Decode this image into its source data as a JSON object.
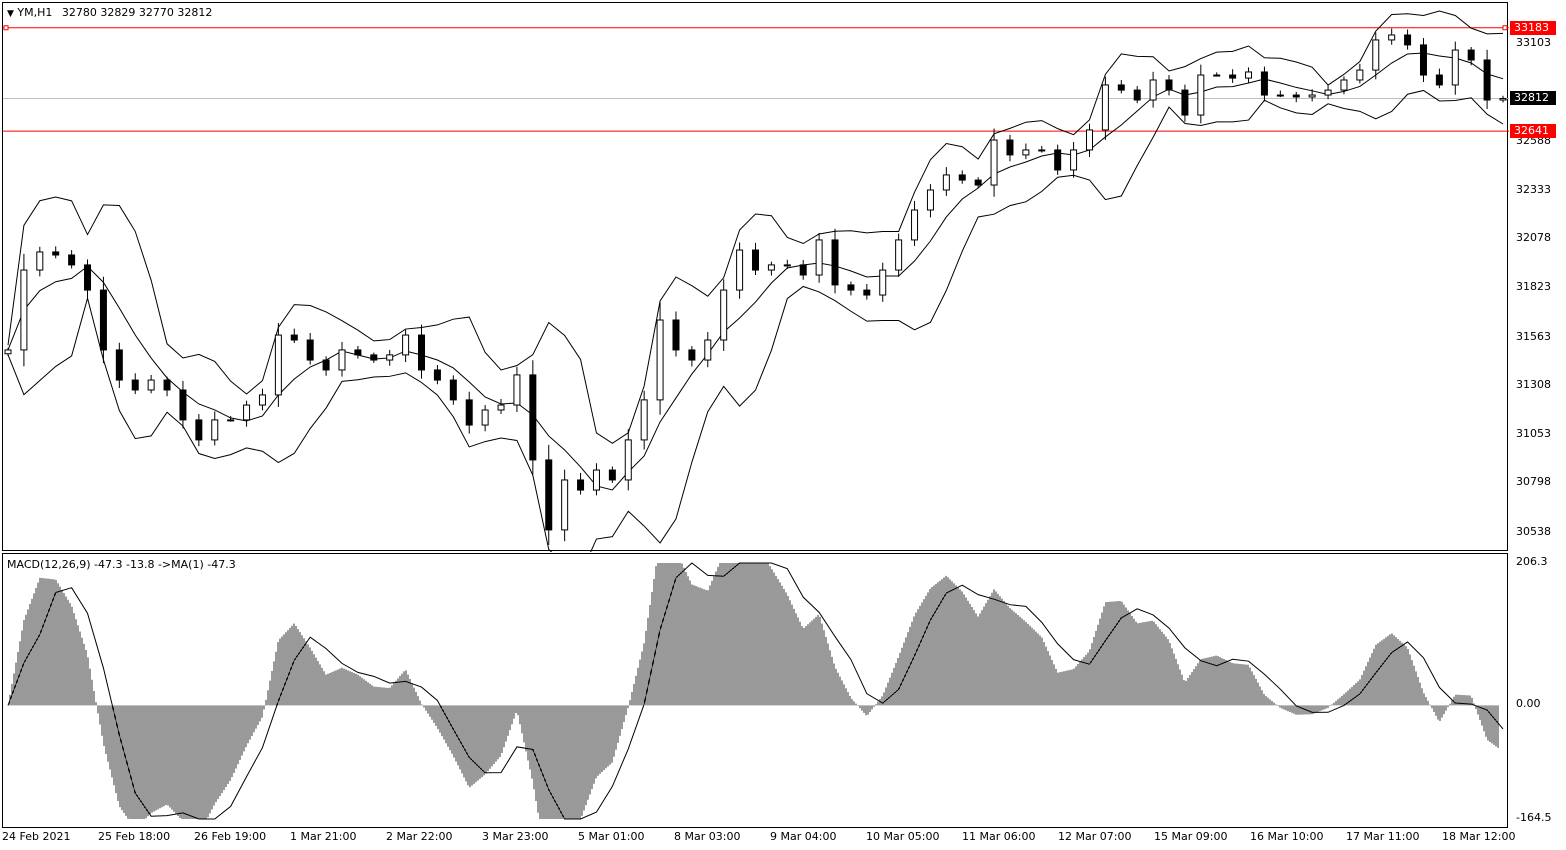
{
  "header": {
    "symbol_label": "YM,H1",
    "ohlc": "32780 32829 32770 32812",
    "menu_icon": "triangle-down-icon"
  },
  "macd_header": "MACD(12,26,9) -47.3 -13.8  ->MA(1) -47.3",
  "colors": {
    "level_line": "#ff0000",
    "current_tag": "#000000",
    "bull_body": "#ffffff",
    "bear_body": "#000000",
    "grid_line": "#c0c0c0"
  },
  "chart_data": [
    {
      "type": "candlestick",
      "symbol": "YM",
      "timeframe": "H1",
      "indicators": [
        "Bollinger Bands",
        "MACD"
      ],
      "y_ticks": [
        33103,
        32588,
        32333,
        32078,
        31823,
        31563,
        31308,
        31053,
        30798,
        30538
      ],
      "ylim": [
        30480,
        33385
      ],
      "levels": [
        {
          "value": 33183,
          "label": "33183"
        },
        {
          "value": 32641,
          "label": "32641"
        }
      ],
      "current_price": {
        "value": 32812,
        "label": "32812"
      },
      "x_ticks": [
        "24 Feb 2021",
        "25 Feb 18:00",
        "26 Feb 19:00",
        "1 Mar 21:00",
        "2 Mar 22:00",
        "3 Mar 23:00",
        "5 Mar 01:00",
        "8 Mar 03:00",
        "9 Mar 04:00",
        "10 Mar 05:00",
        "11 Mar 06:00",
        "12 Mar 07:00",
        "15 Mar 09:00",
        "16 Mar 10:00",
        "17 Mar 11:00",
        "18 Mar 12:00"
      ],
      "closes": [
        31493,
        31912,
        32007,
        31991,
        31939,
        31807,
        31493,
        31335,
        31283,
        31335,
        31283,
        31126,
        31021,
        31126,
        31126,
        31204,
        31257,
        31571,
        31545,
        31440,
        31388,
        31493,
        31467,
        31440,
        31467,
        31571,
        31388,
        31335,
        31231,
        31099,
        31178,
        31204,
        31362,
        30916,
        30549,
        30811,
        30758,
        30863,
        30811,
        31021,
        31231,
        31650,
        31493,
        31440,
        31545,
        31807,
        32017,
        31912,
        31939,
        31939,
        31886,
        32070,
        31834,
        31807,
        31781,
        31912,
        32070,
        32227,
        32332,
        32411,
        32384,
        32358,
        32594,
        32516,
        32542,
        32542,
        32437,
        32542,
        32647,
        32883,
        32856,
        32804,
        32909,
        32856,
        32725,
        32935,
        32935,
        32919,
        32951,
        32830,
        32830,
        32820,
        32830,
        32856,
        32909,
        32961,
        33119,
        33145,
        33093,
        32935,
        32883,
        33066,
        33014,
        32804,
        32812
      ]
    },
    {
      "type": "bar+line",
      "name": "MACD(12,26,9)",
      "y_ticks": [
        "206.3",
        "0.00",
        "-164.5"
      ],
      "ylim": [
        -164.5,
        206.3
      ]
    }
  ]
}
